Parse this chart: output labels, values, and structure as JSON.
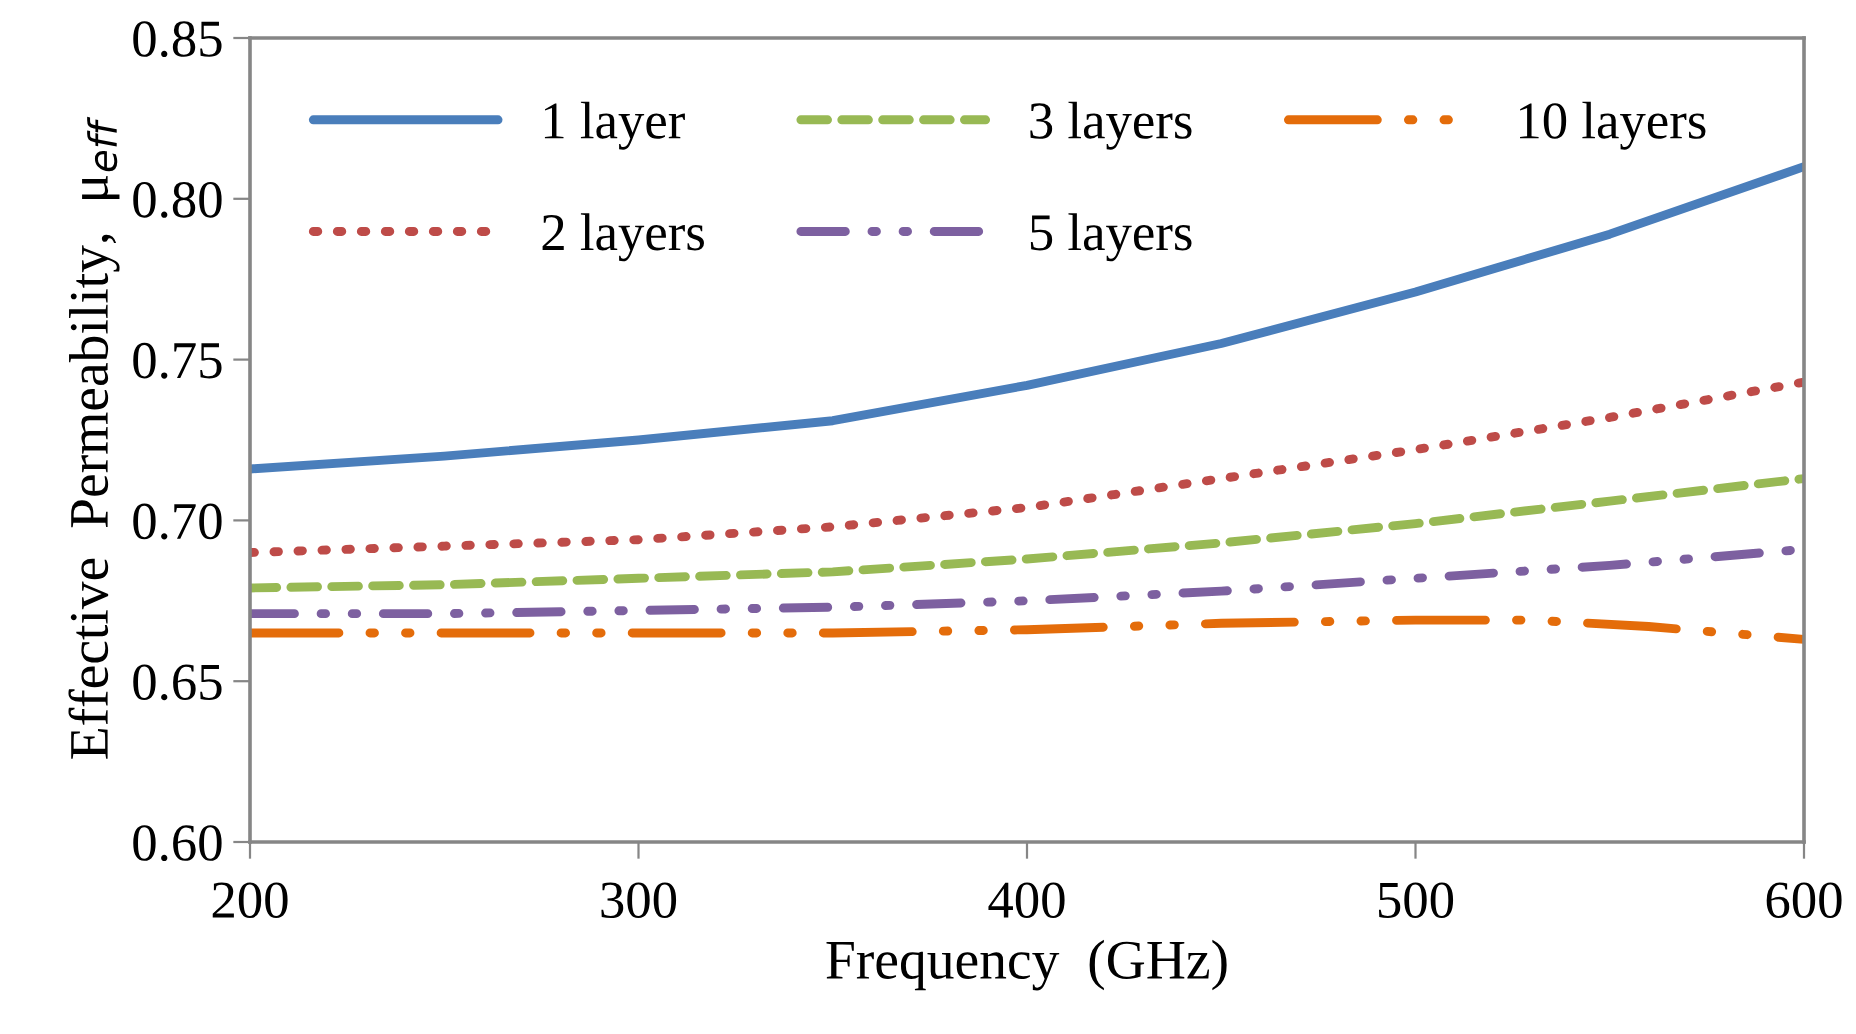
{
  "chart_data": {
    "type": "line",
    "xlabel": "Frequency  (GHz)",
    "ylabel": "Effective  Permeability,  μ$_{eff}$",
    "xlim": [
      200,
      600
    ],
    "xticks": [
      200,
      300,
      400,
      500,
      600
    ],
    "ylim": [
      0.6,
      0.85
    ],
    "yticks": [
      {
        "value": 0.6,
        "label": "0.60"
      },
      {
        "value": 0.65,
        "label": "0.65"
      },
      {
        "value": 0.7,
        "label": "0.70"
      },
      {
        "value": 0.75,
        "label": "0.75"
      },
      {
        "value": 0.8,
        "label": "0.80"
      },
      {
        "value": 0.85,
        "label": "0.85"
      }
    ],
    "grid": false,
    "legend": "top left",
    "marker": "none",
    "series": [
      {
        "name": "1 layer",
        "color": "#4a7ebb",
        "line_style": "solid",
        "x": [
          200,
          250,
          300,
          350,
          400,
          450,
          500,
          550,
          600
        ],
        "values": [
          0.716,
          0.72,
          0.725,
          0.731,
          0.742,
          0.755,
          0.771,
          0.789,
          0.81
        ]
      },
      {
        "name": "2 layers",
        "color": "#be4b48",
        "line_style": "dotted",
        "x": [
          200,
          250,
          300,
          350,
          400,
          450,
          500,
          550,
          600
        ],
        "values": [
          0.69,
          0.692,
          0.694,
          0.698,
          0.704,
          0.713,
          0.722,
          0.732,
          0.743
        ]
      },
      {
        "name": "3 layers",
        "color": "#98b954",
        "line_style": "dashed",
        "x": [
          200,
          250,
          300,
          350,
          400,
          450,
          500,
          550,
          600
        ],
        "values": [
          0.679,
          0.68,
          0.682,
          0.684,
          0.688,
          0.693,
          0.699,
          0.706,
          0.713
        ]
      },
      {
        "name": "5 layers",
        "color": "#7d60a0",
        "line_style": "dashdot",
        "x": [
          200,
          250,
          300,
          350,
          400,
          450,
          500,
          550,
          600
        ],
        "values": [
          0.671,
          0.671,
          0.672,
          0.673,
          0.675,
          0.678,
          0.682,
          0.686,
          0.691
        ]
      },
      {
        "name": "10 layers",
        "color": "#e46c0a",
        "line_style": "dashdotdot",
        "x": [
          200,
          250,
          300,
          350,
          400,
          450,
          500,
          530,
          560,
          600
        ],
        "values": [
          0.665,
          0.665,
          0.665,
          0.665,
          0.666,
          0.668,
          0.669,
          0.669,
          0.667,
          0.663
        ]
      }
    ]
  }
}
